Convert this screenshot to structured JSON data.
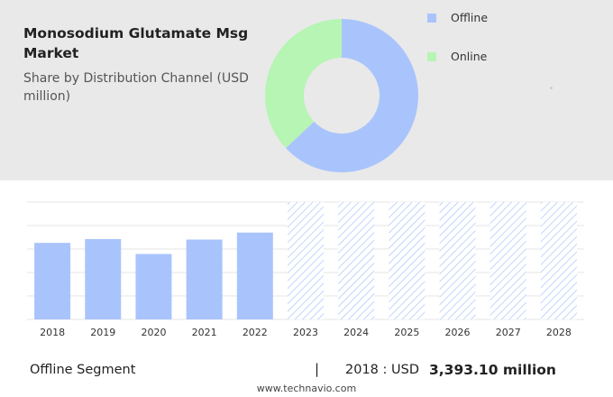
{
  "header": {
    "title": "Monosodium Glutamate Msg Market",
    "subtitle": "Share by Distribution Channel (USD million)"
  },
  "colors": {
    "offline": "#a9c4fc",
    "online": "#b6f5b4",
    "hatch": "#a9c4fc",
    "grid": "#e4e4e4"
  },
  "chart_data": [
    {
      "type": "pie",
      "donut": true,
      "legend_position": "top-right",
      "labels": [
        "Offline",
        "Online"
      ],
      "values": [
        63,
        37
      ]
    },
    {
      "type": "bar",
      "categories": [
        "2018",
        "2019",
        "2020",
        "2021",
        "2022",
        "2023",
        "2024",
        "2025",
        "2026",
        "2027",
        "2028"
      ],
      "values": [
        3393.1,
        3560,
        2900,
        3540,
        3850,
        null,
        null,
        null,
        null,
        null,
        null
      ],
      "forecast_from": "2023",
      "grid": true,
      "ylim": [
        0,
        5200
      ]
    }
  ],
  "footer": {
    "segment_label": "Offline Segment",
    "separator": "|",
    "year_text": "2018 : USD",
    "value_text": "3,393.10 million",
    "website": "www.technavio.com"
  }
}
